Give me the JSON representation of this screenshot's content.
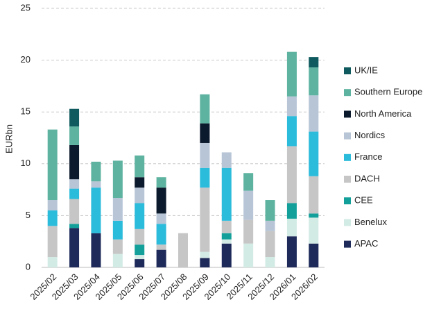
{
  "chart_data": {
    "type": "stacked_bar",
    "y_label": "EURbn",
    "categories": [
      "2025/02",
      "2025/03",
      "2025/04",
      "2025/05",
      "2025/06",
      "2025/07",
      "2025/08",
      "2025/09",
      "2025/10",
      "2025/11",
      "2025/12",
      "2026/01",
      "2026/02"
    ],
    "series": [
      {
        "name": "APAC",
        "color": "#1e2a5a",
        "values": [
          0,
          3.8,
          3.3,
          0,
          0.8,
          1.7,
          0,
          0.9,
          2.3,
          0,
          0,
          3.0,
          2.3
        ]
      },
      {
        "name": "Benelux",
        "color": "#d3ebe5",
        "values": [
          1.0,
          0,
          0,
          1.3,
          0.4,
          0,
          0,
          0.6,
          0.4,
          2.3,
          1.0,
          1.7,
          2.5
        ]
      },
      {
        "name": "CEE",
        "color": "#14a09a",
        "values": [
          0,
          0.4,
          0,
          0,
          1.0,
          0,
          0,
          0,
          0.6,
          0,
          0,
          1.5,
          0.4
        ]
      },
      {
        "name": "DACH",
        "color": "#c6c6c6",
        "values": [
          3.0,
          2.4,
          0,
          1.4,
          1.5,
          0.5,
          3.3,
          6.2,
          1.2,
          2.3,
          2.5,
          5.5,
          3.6
        ]
      },
      {
        "name": "France",
        "color": "#2bbbdb",
        "values": [
          1.5,
          1.0,
          4.4,
          1.8,
          2.5,
          2.0,
          0,
          1.9,
          5.1,
          0,
          0,
          2.9,
          4.3
        ]
      },
      {
        "name": "Nordics",
        "color": "#b7c5d7",
        "values": [
          1.0,
          0.9,
          0.6,
          2.2,
          1.5,
          1.0,
          0,
          2.4,
          1.5,
          2.8,
          1.0,
          1.9,
          3.5
        ]
      },
      {
        "name": "North America",
        "color": "#0c1a2d",
        "values": [
          0,
          3.3,
          0,
          0,
          1.0,
          2.5,
          0,
          1.9,
          0,
          0,
          0,
          0,
          0
        ]
      },
      {
        "name": "Southern Europe",
        "color": "#5eb3a0",
        "values": [
          6.8,
          1.8,
          1.9,
          3.6,
          2.1,
          1.0,
          0,
          2.8,
          0,
          1.7,
          2.0,
          4.3,
          2.7
        ]
      },
      {
        "name": "UK/IE",
        "color": "#0e5a5e",
        "values": [
          0,
          1.7,
          0,
          0,
          0,
          0,
          0,
          0,
          0,
          0,
          0,
          0,
          1.0
        ]
      }
    ],
    "ylim": [
      0,
      25
    ],
    "yticks": [
      0,
      5,
      10,
      15,
      20,
      25
    ],
    "grid": true,
    "legend": "right"
  }
}
